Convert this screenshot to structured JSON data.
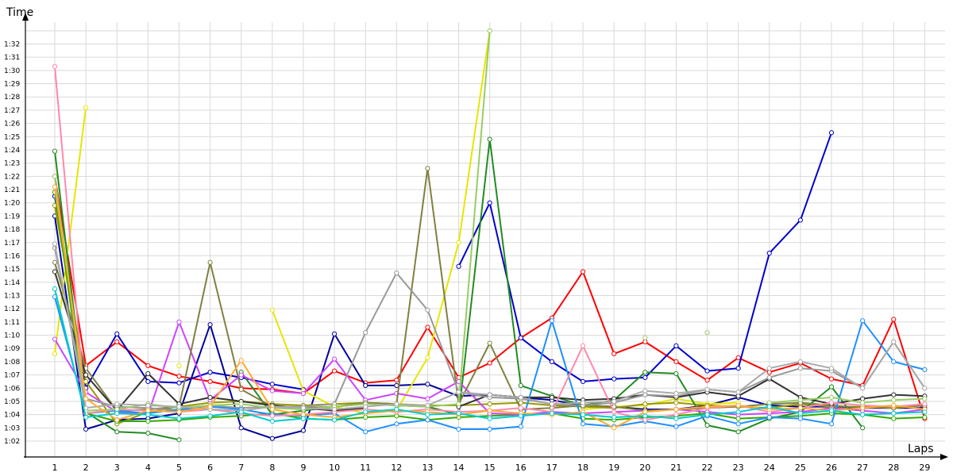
{
  "chart_data": {
    "type": "line",
    "ylabel": "Time",
    "xlabel": "Laps",
    "x": [
      1,
      2,
      3,
      4,
      5,
      6,
      7,
      8,
      9,
      10,
      11,
      12,
      13,
      14,
      15,
      16,
      17,
      18,
      19,
      20,
      21,
      22,
      23,
      24,
      25,
      26,
      27,
      28,
      29
    ],
    "y_ticks": [
      "1:02",
      "1:03",
      "1:04",
      "1:05",
      "1:06",
      "1:07",
      "1:08",
      "1:09",
      "1:10",
      "1:11",
      "1:12",
      "1:13",
      "1:14",
      "1:15",
      "1:16",
      "1:17",
      "1:18",
      "1:19",
      "1:20",
      "1:21",
      "1:22",
      "1:23",
      "1:24",
      "1:25",
      "1:26",
      "1:27",
      "1:28",
      "1:29",
      "1:30",
      "1:31",
      "1:32"
    ],
    "y_unit": "seconds",
    "ylim": [
      61,
      93
    ],
    "xlim": [
      0.1,
      29.2
    ],
    "grid": true,
    "series": [
      {
        "color": "#ff0000",
        "values": [
          82.0,
          67.7,
          69.5,
          67.7,
          66.9,
          66.5,
          66.0,
          65.9,
          65.6,
          67.3,
          66.4,
          66.6,
          70.6,
          66.8,
          67.9,
          69.8,
          71.3,
          74.8,
          68.6,
          69.5,
          68.0,
          66.6,
          68.3,
          67.2,
          67.9,
          66.7,
          66.2,
          71.2,
          63.7
        ]
      },
      {
        "color": "#0000cc",
        "values": [
          80.5,
          66.0,
          70.1,
          66.5,
          66.4,
          67.2,
          66.8,
          66.3,
          65.9,
          null,
          null,
          null,
          null,
          75.2,
          80.0,
          69.8,
          68.0,
          66.5,
          66.7,
          66.8,
          69.2,
          67.3,
          67.5,
          76.2,
          78.7,
          85.3,
          null,
          null,
          null
        ]
      },
      {
        "color": "#000099",
        "values": [
          79.0,
          62.9,
          63.6,
          63.7,
          64.1,
          70.8,
          63.0,
          62.2,
          62.8,
          70.1,
          66.2,
          66.2,
          66.3,
          65.4,
          65.5,
          65.3,
          65.1,
          64.7,
          64.6,
          64.4,
          64.4,
          64.7,
          65.3,
          64.7,
          64.6,
          64.6,
          64.5,
          64.5,
          64.5
        ]
      },
      {
        "color": "#e6e600",
        "values": [
          68.6,
          87.2,
          null,
          null,
          67.7,
          null,
          null,
          71.9,
          65.8,
          64.6,
          64.1,
          64.3,
          68.3,
          77.0,
          93.0,
          null,
          null,
          64.4,
          64.6,
          64.7,
          65.2,
          64.8,
          64.9,
          null,
          null,
          null,
          null,
          null,
          67.4
        ]
      },
      {
        "color": "#999900",
        "values": [
          79.8,
          66.5,
          63.3,
          64.2,
          64.6,
          64.9,
          65.0,
          64.8,
          64.7,
          64.8,
          64.9,
          64.8,
          64.7,
          64.7,
          64.8,
          64.9,
          64.7,
          64.6,
          64.5,
          64.8,
          64.9,
          64.7,
          64.6,
          64.5,
          64.8,
          64.6,
          64.6,
          64.5,
          64.7
        ]
      },
      {
        "color": "#228b22",
        "values": [
          83.9,
          64.2,
          62.7,
          62.6,
          62.1,
          null,
          67.2,
          64.0,
          64.3,
          64.6,
          64.8,
          64.7,
          64.6,
          64.0,
          84.8,
          66.2,
          65.4,
          64.7,
          65.1,
          67.2,
          67.1,
          63.2,
          62.7,
          63.7,
          64.2,
          66.1,
          63.0,
          null,
          null
        ]
      },
      {
        "color": "#33aa00",
        "values": [
          80.8,
          64.1,
          63.5,
          63.5,
          63.6,
          63.8,
          63.9,
          64.1,
          63.7,
          63.6,
          63.8,
          63.9,
          63.6,
          63.8,
          63.9,
          64.0,
          64.1,
          63.7,
          63.6,
          63.8,
          63.9,
          64.1,
          63.7,
          63.8,
          63.9,
          64.1,
          64.0,
          63.7,
          63.8
        ]
      },
      {
        "color": "#cc44ff",
        "values": [
          69.7,
          65.7,
          64.2,
          64.0,
          71.0,
          65.1,
          67.0,
          65.8,
          65.6,
          68.2,
          65.1,
          65.6,
          65.2,
          66.5,
          64.1,
          64.0,
          64.2,
          64.1,
          64.2,
          64.3,
          64.4,
          64.2,
          64.0,
          64.1,
          64.2,
          64.5,
          64.3,
          64.1,
          64.4
        ]
      },
      {
        "color": "#808040",
        "values": [
          75.5,
          67.5,
          64.3,
          64.4,
          64.6,
          75.5,
          65.9,
          64.6,
          64.5,
          64.6,
          64.9,
          64.8,
          82.6,
          64.8,
          69.4,
          64.4,
          64.5,
          64.7,
          64.6,
          64.3,
          64.4,
          64.5,
          64.6,
          64.8,
          64.9,
          64.7,
          64.5,
          64.6,
          64.7
        ]
      },
      {
        "color": "#333333",
        "values": [
          74.8,
          67.0,
          64.3,
          67.1,
          64.8,
          65.3,
          65.0,
          64.7,
          64.5,
          64.3,
          64.5,
          null,
          null,
          64.6,
          65.5,
          65.3,
          65.3,
          65.1,
          65.2,
          65.5,
          65.3,
          65.7,
          65.4,
          66.7,
          65.3,
          64.8,
          65.2,
          65.5,
          65.4
        ]
      },
      {
        "color": "#999999",
        "values": [
          76.6,
          65.2,
          64.6,
          64.5,
          64.3,
          64.7,
          64.5,
          64.6,
          64.6,
          64.8,
          70.2,
          74.7,
          71.9,
          65.7,
          65.3,
          65.2,
          64.8,
          64.7,
          64.9,
          65.5,
          65.4,
          65.9,
          65.7,
          66.8,
          67.5,
          67.3,
          66.0,
          69.5,
          66.0
        ]
      },
      {
        "color": "#1e90ff",
        "values": [
          72.9,
          64.1,
          64.3,
          64.1,
          64.4,
          64.6,
          64.4,
          64.0,
          63.9,
          64.1,
          62.7,
          63.3,
          63.6,
          62.9,
          62.9,
          63.1,
          71.1,
          63.3,
          63.1,
          63.5,
          63.1,
          63.9,
          63.3,
          63.8,
          63.7,
          63.3,
          71.1,
          68.0,
          67.4
        ]
      },
      {
        "color": "#ff88aa",
        "values": [
          90.3,
          64.1,
          64.4,
          64.3,
          64.2,
          64.4,
          64.1,
          63.9,
          64.0,
          64.2,
          64.4,
          64.2,
          64.4,
          64.2,
          64.3,
          64.5,
          64.2,
          69.2,
          64.2,
          63.6,
          64.0,
          64.5,
          64.7,
          64.2,
          64.5,
          64.9,
          64.7,
          64.6,
          64.8
        ]
      },
      {
        "color": "#99cc66",
        "values": [
          82.0,
          64.3,
          64.4,
          64.8,
          64.5,
          64.7,
          64.8,
          64.5,
          64.4,
          64.6,
          64.8,
          64.7,
          64.6,
          64.8,
          93.0,
          null,
          null,
          null,
          null,
          69.8,
          null,
          70.2,
          null,
          64.9,
          65.1,
          65.3,
          64.9,
          65.1,
          65.2
        ]
      },
      {
        "color": "#aaaaaa",
        "values": [
          76.9,
          64.5,
          64.8,
          64.7,
          64.6,
          64.4,
          64.3,
          64.6,
          64.5,
          64.4,
          64.6,
          64.8,
          64.7,
          65.7,
          65.5,
          65.3,
          64.8,
          64.9,
          65.0,
          65.8,
          65.6,
          65.9,
          65.7,
          67.5,
          68.0,
          67.5,
          66.0,
          69.5,
          66.0
        ]
      },
      {
        "color": "#ffaa33",
        "values": [
          81.2,
          65.2,
          63.6,
          64.3,
          64.2,
          64.6,
          68.1,
          64.4,
          64.0,
          63.8,
          64.1,
          64.3,
          64.2,
          64.0,
          64.3,
          64.1,
          64.0,
          64.2,
          63.0,
          64.2,
          64.4,
          64.6,
          64.7,
          64.4,
          64.5,
          64.3,
          64.5,
          64.7,
          64.4
        ]
      },
      {
        "color": "#00cccc",
        "values": [
          73.5,
          63.8,
          64.1,
          64.0,
          63.7,
          63.9,
          64.2,
          63.5,
          63.7,
          63.6,
          64.2,
          64.4,
          64.0,
          64.1,
          63.7,
          63.9,
          64.1,
          64.0,
          63.8,
          63.9,
          63.7,
          64.0,
          64.2,
          64.6,
          64.1,
          64.3,
          64.0,
          64.1,
          64.2
        ]
      }
    ]
  }
}
